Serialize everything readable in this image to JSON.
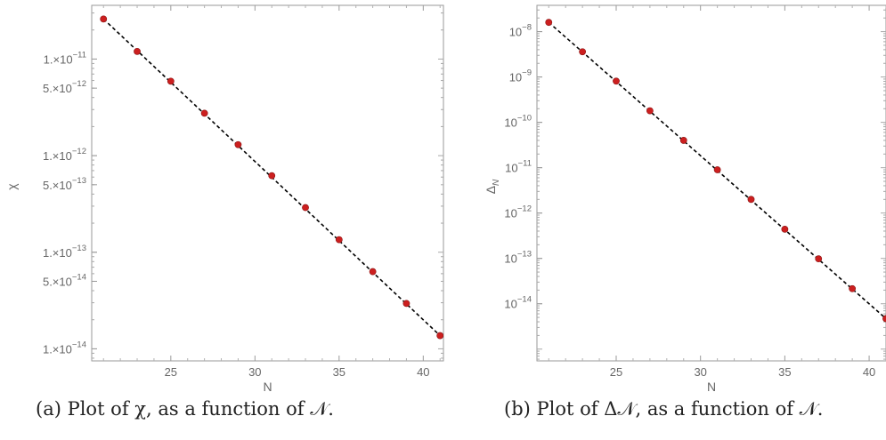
{
  "chart_data": [
    {
      "type": "scatter",
      "x": [
        21,
        23,
        25,
        27,
        29,
        31,
        33,
        35,
        37,
        39,
        41
      ],
      "y": [
        2.6e-11,
        1.2e-11,
        5.9e-12,
        2.75e-12,
        1.3e-12,
        6.2e-13,
        2.9e-13,
        1.35e-13,
        6.3e-14,
        2.95e-14,
        1.37e-14
      ],
      "fit_line": {
        "style": "dashed",
        "color": "#000000",
        "x": [
          21,
          41
        ],
        "y": [
          2.6e-11,
          1.37e-14
        ]
      },
      "point_color": "#cc1f1f",
      "xlabel": "N",
      "ylabel": "χ",
      "xlim": [
        20.3,
        41.2
      ],
      "ylim": [
        7.5e-15,
        3.6e-11
      ],
      "yscale": "log",
      "xticks": [
        25,
        30,
        35,
        40
      ],
      "xtick_labels": [
        "25",
        "30",
        "35",
        "40"
      ],
      "yticks": [
        1e-11,
        5e-12,
        1e-12,
        5e-13,
        1e-13,
        5e-14,
        1e-14
      ],
      "ytick_labels": [
        "1.×10",
        "5.×10",
        "1.×10",
        "5.×10",
        "1.×10",
        "5.×10",
        "1.×10"
      ],
      "ytick_exponents": [
        "−11",
        "−12",
        "−12",
        "−13",
        "−13",
        "−14",
        "−14"
      ],
      "grid": false,
      "caption": "(a) Plot of χ, as a function of 𝒩."
    },
    {
      "type": "scatter",
      "x": [
        21,
        23,
        25,
        27,
        29,
        31,
        33,
        35,
        37,
        39,
        41
      ],
      "y": [
        1.6e-08,
        3.6e-09,
        8.1e-10,
        1.8e-10,
        4e-11,
        9e-12,
        2e-12,
        4.4e-13,
        9.8e-14,
        2.15e-14,
        4.7e-15
      ],
      "fit_line": {
        "style": "dashed",
        "color": "#000000",
        "x": [
          21,
          41
        ],
        "y": [
          1.6e-08,
          4.7e-15
        ]
      },
      "point_color": "#cc1f1f",
      "xlabel": "N",
      "ylabel": "Δ",
      "ylabel_sub": "N",
      "xlim": [
        20.3,
        41.0
      ],
      "ylim": [
        5.5e-16,
        3.8e-08
      ],
      "yscale": "log",
      "xticks": [
        25,
        30,
        35,
        40
      ],
      "xtick_labels": [
        "25",
        "30",
        "35",
        "40"
      ],
      "yticks": [
        1e-08,
        1e-09,
        1e-10,
        1e-11,
        1e-12,
        1e-13,
        1e-14
      ],
      "ytick_labels": [
        "10",
        "10",
        "10",
        "10",
        "10",
        "10",
        "10"
      ],
      "ytick_exponents": [
        "−8",
        "−9",
        "−10",
        "−11",
        "−12",
        "−13",
        "−14"
      ],
      "grid": false,
      "caption": "(b) Plot of Δ𝒩, as a function of 𝒩."
    }
  ]
}
